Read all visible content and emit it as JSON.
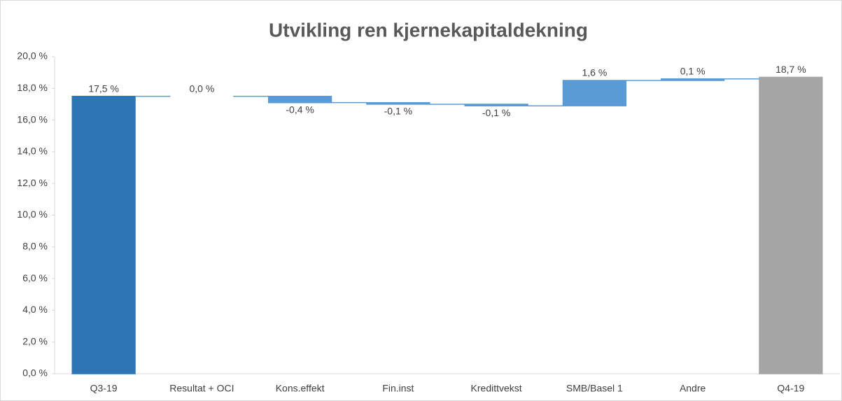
{
  "chart_data": {
    "type": "waterfall",
    "title": "Utvikling ren kjernekapitaldekning",
    "categories": [
      "Q3-19",
      "Resultat + OCI",
      "Kons.effekt",
      "Fin.inst",
      "Kredittvekst",
      "SMB/Basel 1",
      "Andre",
      "Q4-19"
    ],
    "values": [
      17.5,
      0.0,
      -0.4,
      -0.1,
      -0.1,
      1.6,
      0.1,
      18.7
    ],
    "value_labels": [
      "17,5 %",
      "0,0 %",
      "-0,4 %",
      "-0,1 %",
      "-0,1 %",
      "1,6 %",
      "0,1 %",
      "18,7 %"
    ],
    "colors": [
      "#2e75b6",
      "#5b9bd5",
      "#5b9bd5",
      "#5b9bd5",
      "#5b9bd5",
      "#5b9bd5",
      "#5b9bd5",
      "#a5a5a5"
    ],
    "ylim": [
      0,
      20
    ],
    "yticks": [
      {
        "value": 0,
        "label": "0,0 %"
      },
      {
        "value": 2,
        "label": "2,0 %"
      },
      {
        "value": 4,
        "label": "4,0 %"
      },
      {
        "value": 6,
        "label": "6,0 %"
      },
      {
        "value": 8,
        "label": "8,0 %"
      },
      {
        "value": 10,
        "label": "10,0 %"
      },
      {
        "value": 12,
        "label": "12,0 %"
      },
      {
        "value": 14,
        "label": "14,0 %"
      },
      {
        "value": 16,
        "label": "16,0 %"
      },
      {
        "value": 18,
        "label": "18,0 %"
      },
      {
        "value": 20,
        "label": "20,0 %"
      }
    ],
    "grid": false
  }
}
